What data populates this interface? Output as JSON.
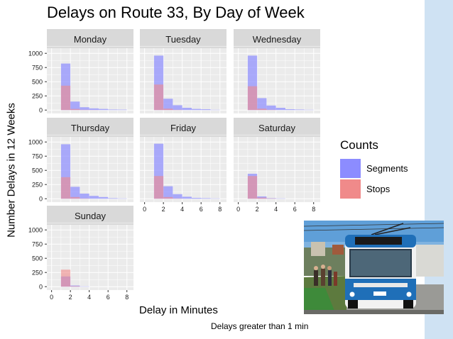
{
  "sidebar_color": "#cfe2f3",
  "note": "Delays greater than 1 min",
  "legend": {
    "title": "Counts",
    "items": [
      {
        "label": "Segments",
        "color": "#8c8cff"
      },
      {
        "label": "Stops",
        "color": "#f08a8a"
      }
    ]
  },
  "photo": {
    "alt": "Photo of a blue and white trolleybus at a stop with passengers",
    "icon": "trolleybus-photo"
  },
  "chart_data": {
    "type": "histogram",
    "title": "Delays on Route 33, By Day of Week",
    "xlabel": "Delay in Minutes",
    "ylabel": "Number Delays in 12 Weeks",
    "xlim": [
      -0.5,
      8.7
    ],
    "ylim": [
      -60,
      1090
    ],
    "x_ticks": [
      0,
      2,
      4,
      6,
      8
    ],
    "y_ticks": [
      0,
      250,
      500,
      750,
      1000
    ],
    "bin_edges": [
      1,
      2,
      3,
      4,
      5,
      6,
      7,
      8
    ],
    "grid": true,
    "legend_position": "right",
    "facets": [
      {
        "label": "Monday",
        "segments": [
          820,
          150,
          50,
          30,
          20,
          10,
          8
        ],
        "stops": [
          430,
          20,
          5,
          2,
          0,
          0,
          0
        ]
      },
      {
        "label": "Tuesday",
        "segments": [
          960,
          200,
          85,
          40,
          20,
          15,
          5
        ],
        "stops": [
          450,
          25,
          5,
          0,
          0,
          0,
          0
        ]
      },
      {
        "label": "Wednesday",
        "segments": [
          960,
          210,
          80,
          40,
          15,
          10,
          5
        ],
        "stops": [
          420,
          25,
          5,
          0,
          0,
          0,
          0
        ]
      },
      {
        "label": "Thursday",
        "segments": [
          960,
          210,
          90,
          50,
          30,
          10,
          5
        ],
        "stops": [
          380,
          30,
          5,
          0,
          0,
          0,
          0
        ]
      },
      {
        "label": "Friday",
        "segments": [
          970,
          220,
          80,
          35,
          15,
          10,
          5
        ],
        "stops": [
          400,
          30,
          5,
          0,
          0,
          0,
          0
        ]
      },
      {
        "label": "Saturday",
        "segments": [
          440,
          40,
          10,
          5,
          0,
          0,
          0
        ],
        "stops": [
          400,
          20,
          5,
          0,
          0,
          0,
          0
        ]
      },
      {
        "label": "Sunday",
        "segments": [
          180,
          20,
          5,
          0,
          0,
          0,
          0
        ],
        "stops": [
          300,
          10,
          0,
          0,
          0,
          0,
          0
        ]
      }
    ]
  }
}
